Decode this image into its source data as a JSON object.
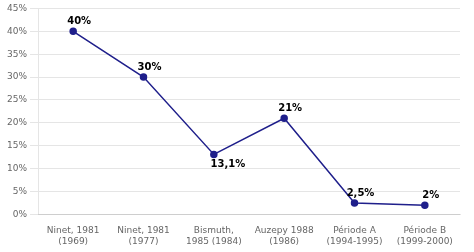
{
  "chart_data": {
    "type": "line",
    "categories": [
      "Ninet, 1981\n(1969)",
      "Ninet, 1981\n(1977)",
      "Bismuth,\n1985 (1984)",
      "Auzepy 1988\n(1986)",
      "Période A\n(1994-1995)",
      "Période B\n(1999-2000)"
    ],
    "values": [
      40,
      30,
      13.1,
      21,
      2.5,
      2
    ],
    "value_labels": [
      "40%",
      "30%",
      "13,1%",
      "21%",
      "2,5%",
      "2%"
    ],
    "data_labels": true,
    "color": "#1F1F8B",
    "marker": "circle",
    "ylim": [
      0,
      45
    ],
    "yticks": [
      {
        "value": 0,
        "label": "0%"
      },
      {
        "value": 5,
        "label": "5%"
      },
      {
        "value": 10,
        "label": "10%"
      },
      {
        "value": 15,
        "label": "15%"
      },
      {
        "value": 20,
        "label": "20%"
      },
      {
        "value": 25,
        "label": "25%"
      },
      {
        "value": 30,
        "label": "30%"
      },
      {
        "value": 35,
        "label": "35%"
      },
      {
        "value": 40,
        "label": "40%"
      },
      {
        "value": 45,
        "label": "45%"
      }
    ],
    "grid": true
  }
}
